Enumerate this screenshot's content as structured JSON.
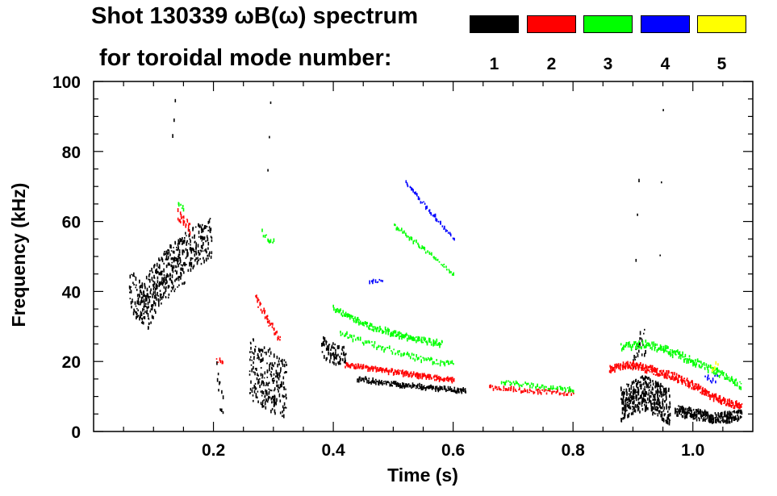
{
  "chart_data": {
    "type": "scatter",
    "title_line1": "Shot 130339 ωB(ω) spectrum",
    "title_line2": "for toroidal mode number:",
    "xlabel": "Time (s)",
    "ylabel": "Frequency (kHz)",
    "xlim": [
      0.0,
      1.1
    ],
    "ylim": [
      0,
      100
    ],
    "x_ticks": [
      0.2,
      0.4,
      0.6,
      0.8,
      1.0
    ],
    "x_tick_labels": [
      "0.2",
      "0.4",
      "0.6",
      "0.8",
      "1.0"
    ],
    "y_ticks": [
      0,
      20,
      40,
      60,
      80,
      100
    ],
    "y_tick_labels": [
      "0",
      "20",
      "40",
      "60",
      "80",
      "100"
    ],
    "legend": [
      {
        "mode": "1",
        "color": "#000000"
      },
      {
        "mode": "2",
        "color": "#ff0000"
      },
      {
        "mode": "3",
        "color": "#00ff00"
      },
      {
        "mode": "4",
        "color": "#0000ff"
      },
      {
        "mode": "5",
        "color": "#ffff00"
      }
    ],
    "series": [
      {
        "name": "1",
        "color": "#000000",
        "segments": [
          {
            "t": [
              0.06,
              0.08,
              0.1,
              0.12,
              0.14,
              0.16,
              0.18,
              0.195
            ],
            "f": [
              40,
              37,
              42,
              46,
              49,
              52,
              54,
              55
            ],
            "spread": 6,
            "density": 6
          },
          {
            "t": [
              0.07,
              0.09,
              0.11,
              0.13,
              0.15
            ],
            "f": [
              38,
              34,
              41,
              44,
              47
            ],
            "spread": 5,
            "density": 3
          },
          {
            "t": [
              0.26,
              0.28,
              0.3,
              0.32
            ],
            "f": [
              18,
              16,
              14,
              12
            ],
            "spread": 9,
            "density": 8
          },
          {
            "t": [
              0.205,
              0.215
            ],
            "f": [
              14,
              10
            ],
            "spread": 6,
            "density": 2
          },
          {
            "t": [
              0.38,
              0.4,
              0.42
            ],
            "f": [
              24,
              22,
              21
            ],
            "spread": 3,
            "density": 4
          },
          {
            "t": [
              0.44,
              0.5,
              0.56,
              0.62
            ],
            "f": [
              15,
              13.5,
              12.5,
              11.5
            ],
            "spread": 0.6,
            "density": 2
          },
          {
            "t": [
              0.88,
              0.9,
              0.92,
              0.94,
              0.96
            ],
            "f": [
              8,
              10,
              11,
              9,
              7
            ],
            "spread": 5,
            "density": 10
          },
          {
            "t": [
              0.97,
              1.0,
              1.03,
              1.06,
              1.08
            ],
            "f": [
              6,
              5,
              4,
              4,
              5
            ],
            "spread": 1.5,
            "density": 5
          },
          {
            "t": [
              0.9,
              0.91,
              0.92
            ],
            "f": [
              22,
              24,
              26
            ],
            "spread": 4,
            "density": 2
          },
          {
            "t": [
              0.13,
              0.135
            ],
            "f": [
              85,
              94
            ],
            "spread": 1,
            "density": 1
          },
          {
            "t": [
              0.29,
              0.295
            ],
            "f": [
              75,
              95
            ],
            "spread": 2,
            "density": 1
          },
          {
            "t": [
              0.905,
              0.91
            ],
            "f": [
              50,
              72
            ],
            "spread": 3,
            "density": 1
          },
          {
            "t": [
              0.945,
              0.95
            ],
            "f": [
              50,
              90
            ],
            "spread": 3,
            "density": 1
          }
        ]
      },
      {
        "name": "2",
        "color": "#ff0000",
        "segments": [
          {
            "t": [
              0.14,
              0.15,
              0.16
            ],
            "f": [
              62,
              60,
              58
            ],
            "spread": 1.5,
            "density": 2
          },
          {
            "t": [
              0.27,
              0.29,
              0.31
            ],
            "f": [
              38,
              32,
              26
            ],
            "spread": 1.2,
            "density": 2
          },
          {
            "t": [
              0.205,
              0.215
            ],
            "f": [
              21,
              19
            ],
            "spread": 1,
            "density": 1
          },
          {
            "t": [
              0.42,
              0.48,
              0.54,
              0.6
            ],
            "f": [
              19,
              17.5,
              16,
              14.5
            ],
            "spread": 0.6,
            "density": 2
          },
          {
            "t": [
              0.66,
              0.74,
              0.8
            ],
            "f": [
              12.5,
              11.5,
              11
            ],
            "spread": 0.6,
            "density": 1
          },
          {
            "t": [
              0.86,
              0.9,
              0.94,
              0.98,
              1.02,
              1.06,
              1.08
            ],
            "f": [
              18,
              19,
              17,
              15,
              11,
              8,
              7
            ],
            "spread": 1,
            "density": 3
          }
        ]
      },
      {
        "name": "3",
        "color": "#00ff00",
        "segments": [
          {
            "t": [
              0.14,
              0.15
            ],
            "f": [
              65,
              63
            ],
            "spread": 1,
            "density": 1
          },
          {
            "t": [
              0.28,
              0.3
            ],
            "f": [
              57,
              54
            ],
            "spread": 1,
            "density": 1
          },
          {
            "t": [
              0.4,
              0.46,
              0.52,
              0.58
            ],
            "f": [
              35,
              30,
              27,
              25
            ],
            "spread": 0.8,
            "density": 2
          },
          {
            "t": [
              0.41,
              0.48,
              0.54,
              0.6
            ],
            "f": [
              28,
              24,
              21,
              19
            ],
            "spread": 0.8,
            "density": 1
          },
          {
            "t": [
              0.5,
              0.55,
              0.6
            ],
            "f": [
              59,
              52,
              45
            ],
            "spread": 0.6,
            "density": 1
          },
          {
            "t": [
              0.68,
              0.74,
              0.8
            ],
            "f": [
              14,
              13,
              12
            ],
            "spread": 0.6,
            "density": 1
          },
          {
            "t": [
              0.88,
              0.92,
              0.96,
              1.0,
              1.04,
              1.08
            ],
            "f": [
              24,
              25,
              23,
              20,
              17,
              13
            ],
            "spread": 1,
            "density": 2
          }
        ]
      },
      {
        "name": "4",
        "color": "#0000ff",
        "segments": [
          {
            "t": [
              0.52,
              0.56,
              0.6
            ],
            "f": [
              71,
              63,
              55
            ],
            "spread": 0.5,
            "density": 1
          },
          {
            "t": [
              0.46,
              0.48
            ],
            "f": [
              43,
              43
            ],
            "spread": 0.5,
            "density": 1
          },
          {
            "t": [
              1.02,
              1.04
            ],
            "f": [
              15,
              15
            ],
            "spread": 1,
            "density": 1
          }
        ]
      },
      {
        "name": "5",
        "color": "#ffff00",
        "segments": [
          {
            "t": [
              1.03,
              1.04
            ],
            "f": [
              18,
              19
            ],
            "spread": 0.8,
            "density": 1
          }
        ]
      }
    ]
  }
}
